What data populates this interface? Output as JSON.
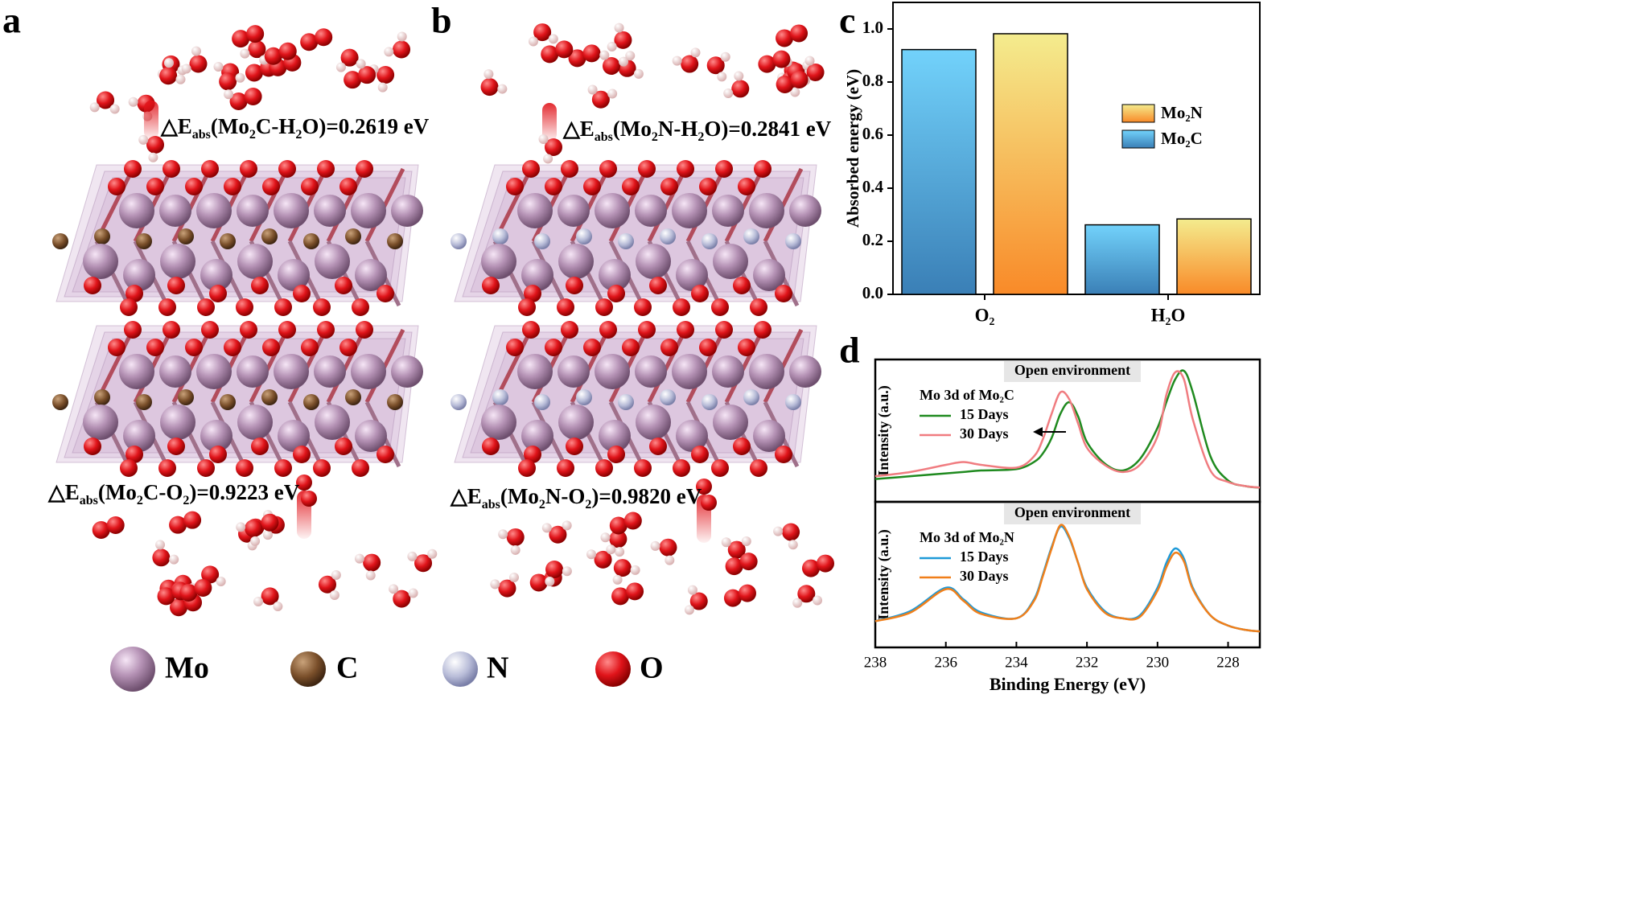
{
  "structures": {
    "panel_labels": [
      "a",
      "b",
      "c",
      "d"
    ],
    "annotations": [
      {
        "segments": [
          "△E",
          "abs",
          "(Mo",
          "2",
          "C-H",
          "2",
          "O)=0.2619 eV"
        ]
      },
      {
        "segments": [
          "△E",
          "abs",
          "(Mo",
          "2",
          "C-O",
          "2",
          ")=0.9223 eV"
        ]
      },
      {
        "segments": [
          "△E",
          "abs",
          "(Mo",
          "2",
          "N-H",
          "2",
          "O)=0.2841 eV"
        ]
      },
      {
        "segments": [
          "△E",
          "abs",
          "(Mo",
          "2",
          "N-O",
          "2",
          ")=0.9820 eV"
        ]
      }
    ],
    "atom_legend": [
      "Mo",
      "C",
      "N",
      "O"
    ]
  },
  "chart_data": [
    {
      "type": "bar",
      "ylabel": "Absorbed energy (eV)",
      "categories": [
        "O₂",
        "H₂O"
      ],
      "series": [
        {
          "name": "Mo₂C",
          "colors": [
            "#72d2fb",
            "#3a7fb6"
          ],
          "values": [
            0.9223,
            0.2619
          ]
        },
        {
          "name": "Mo₂N",
          "colors": [
            "#f4ec8e",
            "#f98a28"
          ],
          "values": [
            0.982,
            0.2841
          ]
        }
      ],
      "ylim": [
        0,
        1.1
      ],
      "yticks": [
        {
          "value": 0,
          "label": "0.0"
        },
        0.2,
        0.4,
        0.6,
        0.8,
        {
          "value": 1,
          "label": "1.0"
        }
      ],
      "legend": "center-right"
    },
    {
      "type": "line",
      "title": "Open environment",
      "legend_title": "Mo 3d of Mo₂C",
      "ylabel": "Intensity (a.u.)",
      "xlim": [
        238,
        227.1
      ],
      "ylim": [
        0,
        100
      ],
      "x": [
        238,
        237,
        236,
        235.5,
        235,
        234,
        233.5,
        233.25,
        233,
        232.75,
        232.5,
        232.25,
        232,
        231.5,
        231,
        230.5,
        230,
        229.75,
        229.5,
        229.25,
        229,
        228.5,
        228,
        227.5,
        227.1
      ],
      "series": [
        {
          "name": "15 Days",
          "color": "#1f8a1f",
          "values": [
            16,
            18,
            20,
            21,
            22,
            23,
            28,
            34,
            45,
            62,
            70,
            60,
            42,
            27,
            22,
            30,
            52,
            70,
            86,
            92,
            77,
            32,
            15,
            11,
            10
          ]
        },
        {
          "name": "30 Days",
          "color": "#f07c80",
          "values": [
            18,
            21,
            26,
            28,
            26,
            24,
            32,
            44,
            62,
            77,
            72,
            55,
            38,
            26,
            21,
            26,
            46,
            75,
            91,
            86,
            58,
            22,
            14,
            11,
            10
          ]
        }
      ]
    },
    {
      "type": "line",
      "title": "Open environment",
      "legend_title": "Mo 3d of Mo₂N",
      "ylabel": "Intensity (a.u.)",
      "xlabel": "Binding Energy (eV)",
      "xlim": [
        238,
        227.1
      ],
      "ylim": [
        0,
        100
      ],
      "xticks": [
        238,
        236,
        234,
        232,
        230,
        228
      ],
      "x": [
        238,
        237,
        236,
        235.5,
        235,
        234,
        233.5,
        233.25,
        233,
        232.75,
        232.5,
        232.25,
        232,
        231.5,
        231,
        230.5,
        230,
        229.75,
        229.5,
        229.25,
        229,
        228.5,
        228,
        227.5,
        227.1
      ],
      "series": [
        {
          "name": "15 Days",
          "color": "#1e9ad8",
          "values": [
            18,
            25,
            41,
            33,
            24,
            20,
            33,
            50,
            69,
            83,
            75,
            58,
            41,
            25,
            20,
            22,
            41,
            58,
            68,
            61,
            41,
            22,
            15,
            12,
            11
          ]
        },
        {
          "name": "30 Days",
          "color": "#f07f1a",
          "values": [
            18,
            24,
            40,
            32,
            23,
            20,
            32,
            49,
            68,
            84,
            76,
            58,
            40,
            24,
            20,
            21,
            39,
            55,
            65,
            59,
            40,
            22,
            15,
            12,
            11
          ]
        }
      ]
    }
  ]
}
